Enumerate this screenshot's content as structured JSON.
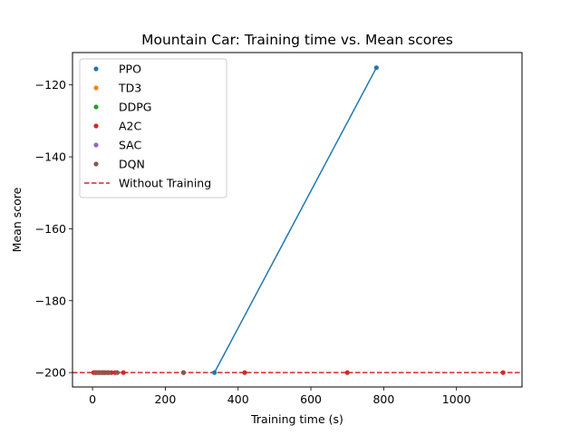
{
  "chart_data": {
    "type": "scatter",
    "title": "Mountain Car: Training time vs. Mean scores",
    "xlabel": "Training time (s)",
    "ylabel": "Mean score",
    "xlim": [
      -55,
      1180
    ],
    "ylim": [
      -204,
      -111
    ],
    "xticks": [
      0,
      200,
      400,
      600,
      800,
      1000
    ],
    "yticks": [
      -200,
      -180,
      -160,
      -140,
      -120
    ],
    "grid": false,
    "legend_position": "top-left",
    "series": [
      {
        "name": "PPO",
        "color": "#1f77b4",
        "connected": true,
        "points": [
          [
            335,
            -200
          ],
          [
            780,
            -115.2
          ]
        ]
      },
      {
        "name": "TD3",
        "color": "#ff7f0e",
        "connected": false,
        "points": []
      },
      {
        "name": "DDPG",
        "color": "#2ca02c",
        "connected": false,
        "points": []
      },
      {
        "name": "A2C",
        "color": "#d62728",
        "connected": false,
        "points": [
          [
            3,
            -200
          ],
          [
            8,
            -200
          ],
          [
            14,
            -200
          ],
          [
            20,
            -200
          ],
          [
            28,
            -200
          ],
          [
            35,
            -200
          ],
          [
            42,
            -200
          ],
          [
            52,
            -200
          ],
          [
            62,
            -200
          ],
          [
            85,
            -200
          ],
          [
            250,
            -200
          ],
          [
            418,
            -200
          ],
          [
            700,
            -200
          ],
          [
            1128,
            -200
          ]
        ]
      },
      {
        "name": "SAC",
        "color": "#9467bd",
        "connected": false,
        "points": []
      },
      {
        "name": "DQN",
        "color": "#8c564b",
        "connected": false,
        "points": [
          [
            10,
            -200
          ],
          [
            18,
            -200
          ],
          [
            25,
            -200
          ],
          [
            32,
            -200
          ],
          [
            45,
            -200
          ],
          [
            68,
            -200
          ],
          [
            250,
            -200
          ]
        ]
      }
    ],
    "reference_line": {
      "name": "Without Training",
      "y": -200,
      "color": "#d62728",
      "style": "dashed"
    }
  }
}
